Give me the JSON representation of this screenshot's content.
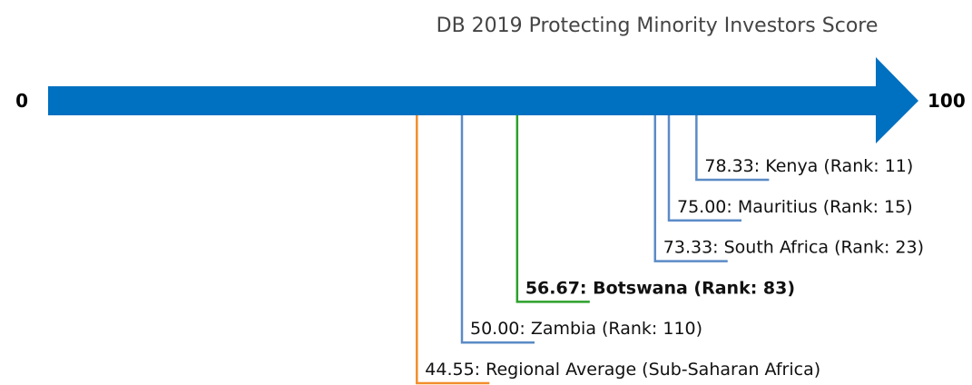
{
  "chart_data": {
    "type": "number_line",
    "title": "DB 2019 Protecting Minority Investors Score",
    "xlim": [
      0,
      100
    ],
    "xticks": [
      0,
      100
    ],
    "axis_color": "#0070c0",
    "points": [
      {
        "label": "78.33: Kenya (Rank: 11)",
        "value": 78.33,
        "color": "#5b8bc6",
        "bold": false
      },
      {
        "label": "75.00: Mauritius (Rank: 15)",
        "value": 75.0,
        "color": "#5b8bc6",
        "bold": false
      },
      {
        "label": "73.33: South Africa (Rank: 23)",
        "value": 73.33,
        "color": "#5b8bc6",
        "bold": false
      },
      {
        "label": "56.67: Botswana (Rank: 83)",
        "value": 56.67,
        "color": "#2ca02c",
        "bold": true
      },
      {
        "label": "50.00: Zambia (Rank: 110)",
        "value": 50.0,
        "color": "#5b8bc6",
        "bold": false
      },
      {
        "label": "44.55: Regional Average (Sub-Saharan Africa)",
        "value": 44.55,
        "color": "#f28e2b",
        "bold": false
      }
    ]
  }
}
